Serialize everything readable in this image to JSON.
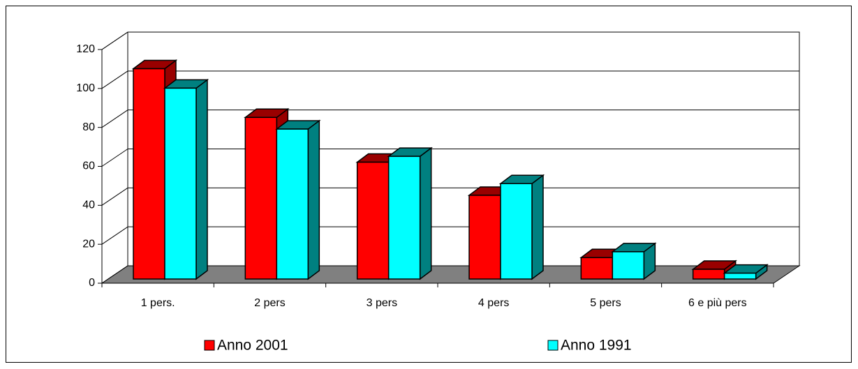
{
  "chart_data": {
    "type": "bar3d",
    "categories": [
      "1 pers.",
      "2 pers",
      "3 pers",
      "4 pers",
      "5 pers",
      "6 e più pers"
    ],
    "series": [
      {
        "name": "Anno 2001",
        "color": "#ff0000",
        "values": [
          108,
          83,
          60,
          43,
          11,
          5
        ]
      },
      {
        "name": "Anno 1991",
        "color": "#00ffff",
        "values": [
          98,
          77,
          63,
          49,
          14,
          3
        ]
      }
    ],
    "ylim": [
      0,
      120
    ],
    "yticks": [
      0,
      20,
      40,
      60,
      80,
      100,
      120
    ],
    "grid": true,
    "legend": "bottom"
  }
}
